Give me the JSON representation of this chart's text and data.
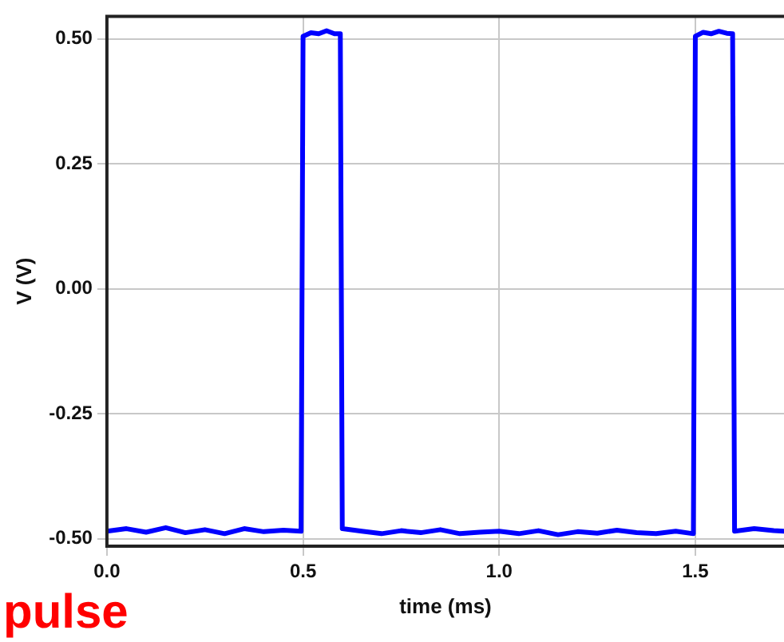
{
  "chart_data": {
    "type": "line",
    "xlabel": "time (ms)",
    "ylabel": "V (V)",
    "annotations": [
      "pulse"
    ],
    "x": [
      0,
      0.05,
      0.1,
      0.15,
      0.2,
      0.25,
      0.3,
      0.35,
      0.4,
      0.45,
      0.495,
      0.5,
      0.52,
      0.54,
      0.56,
      0.58,
      0.595,
      0.6,
      0.65,
      0.7,
      0.75,
      0.8,
      0.85,
      0.9,
      0.95,
      1.0,
      1.05,
      1.1,
      1.15,
      1.2,
      1.25,
      1.3,
      1.35,
      1.4,
      1.45,
      1.495,
      1.5,
      1.52,
      1.54,
      1.56,
      1.58,
      1.595,
      1.6,
      1.65,
      1.7,
      1.726
    ],
    "series": [
      {
        "color": "#0000ff",
        "values": [
          -0.485,
          -0.48,
          -0.487,
          -0.478,
          -0.488,
          -0.482,
          -0.49,
          -0.48,
          -0.486,
          -0.483,
          -0.485,
          0.505,
          0.512,
          0.51,
          0.516,
          0.51,
          0.51,
          -0.48,
          -0.485,
          -0.49,
          -0.484,
          -0.488,
          -0.482,
          -0.49,
          -0.487,
          -0.485,
          -0.49,
          -0.484,
          -0.492,
          -0.486,
          -0.489,
          -0.483,
          -0.488,
          -0.49,
          -0.485,
          -0.49,
          0.505,
          0.513,
          0.51,
          0.515,
          0.511,
          0.51,
          -0.485,
          -0.48,
          -0.484,
          -0.485
        ]
      }
    ],
    "xlim": [
      0,
      1.726
    ],
    "ylim": [
      -0.515,
      0.545
    ],
    "xticks": [
      {
        "value": 0,
        "label": "0.0"
      },
      {
        "value": 0.5,
        "label": "0.5"
      },
      {
        "value": 1,
        "label": "1.0"
      },
      {
        "value": 1.5,
        "label": "1.5"
      }
    ],
    "yticks": [
      {
        "value": -0.5,
        "label": "-0.50"
      },
      {
        "value": -0.25,
        "label": "-0.25"
      },
      {
        "value": 0,
        "label": "0.00"
      },
      {
        "value": 0.25,
        "label": "0.25"
      },
      {
        "value": 0.5,
        "label": "0.50"
      }
    ],
    "grid": true,
    "marker": "none",
    "line_style": "solid"
  }
}
